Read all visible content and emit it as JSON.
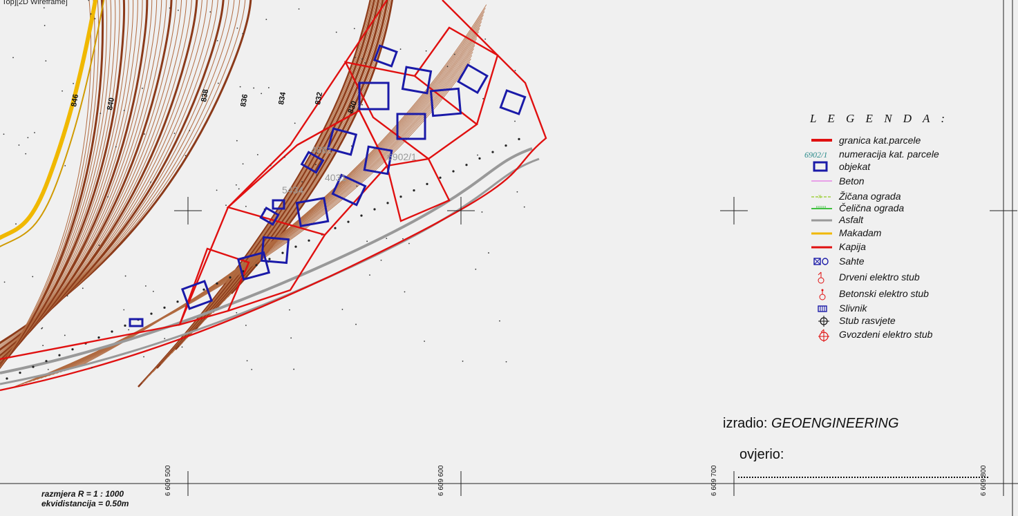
{
  "viewport_label": "Top][2D Wireframe]",
  "legend": {
    "title": "L E G E N D A :",
    "items": [
      {
        "name": "granica-parcele",
        "label": "granica kat.parcele",
        "color": "#e01010"
      },
      {
        "name": "numeracija",
        "label": "numeracija kat. parcele",
        "sample": "6902/1",
        "color": "#2a8a8a"
      },
      {
        "name": "objekat",
        "label": "objekat",
        "color": "#1a1aa8"
      },
      {
        "name": "beton",
        "label": "Beton",
        "color": "#e050e0"
      },
      {
        "name": "zicana-ograda",
        "label": "Žičana ograda",
        "color": "#a0d040"
      },
      {
        "name": "celicna-ograda",
        "label": "Čelična ograda",
        "color": "#40c040"
      },
      {
        "name": "asfalt",
        "label": "Asfalt",
        "color": "#999999"
      },
      {
        "name": "makadam",
        "label": "Makadam",
        "color": "#f0b800"
      },
      {
        "name": "kapija",
        "label": "Kapija",
        "color": "#e01010"
      },
      {
        "name": "sahte",
        "label": "Sahte",
        "color": "#1a1aa8"
      },
      {
        "name": "drveni-stub",
        "label": "Drveni elektro stub",
        "color": "#e01010"
      },
      {
        "name": "betonski-stub",
        "label": "Betonski elektro stub",
        "color": "#e01010"
      },
      {
        "name": "slivnik",
        "label": "Slivnik",
        "color": "#1a1aa8"
      },
      {
        "name": "stub-rasvjete",
        "label": "Stub rasvjete",
        "color": "#111111"
      },
      {
        "name": "gvozdeni-stub",
        "label": "Gvozdeni elektro stub",
        "color": "#e01010"
      }
    ]
  },
  "izradio": {
    "label": "izradio:",
    "company": "GEOENGINEERING"
  },
  "ovjerio": {
    "label": "ovjerio:"
  },
  "scale": {
    "line1": "razmjera  R = 1 : 1000",
    "line2": "ekvidistancija = 0.50m"
  },
  "coords": [
    "6 609 500",
    "6 609 600",
    "6 609 700",
    "6 609 800"
  ],
  "map_labels": {
    "contours": [
      "838",
      "836",
      "834",
      "832",
      "830",
      "840",
      "846"
    ],
    "parcels": [
      "5434",
      "4861",
      "4031",
      "6902/1"
    ]
  },
  "colors": {
    "contour": "#8b3a1a",
    "contour_thin": "#b06a40",
    "parcel": "#e01010",
    "building": "#1a1aa8",
    "road": "#999999",
    "gravel": "#f0b800"
  }
}
